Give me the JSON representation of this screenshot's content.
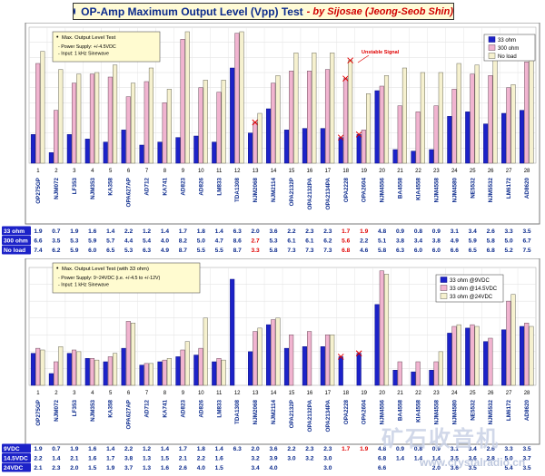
{
  "title": {
    "main": "OP-Amp Maximum Output Level (Vpp) Test",
    "byline": "- by Sijosae (Jeong-Seob Shin)"
  },
  "colors": {
    "blue": "#1c22c8",
    "pink": "#f1b4d0",
    "cream": "#f6f1cf",
    "red": "#e00000",
    "frame": "#7a7a7a",
    "noteBg": "#fffbd0"
  },
  "chart_data": [
    {
      "type": "bar",
      "title": "Max. Output Level Test",
      "notes": [
        "Power Supply: +/-4.5VDC",
        "Input: 1 kHz Sinewave"
      ],
      "numbers": [
        "1",
        "2",
        "3",
        "4",
        "5",
        "6",
        "7",
        "8",
        "9",
        "10",
        "11",
        "12",
        "13",
        "14",
        "15",
        "16",
        "17",
        "18",
        "19",
        "20",
        "21",
        "22",
        "23",
        "24",
        "25",
        "26",
        "27",
        "28"
      ],
      "categories": [
        "OP275GP",
        "NJM072",
        "LF353",
        "NJM353",
        "KA358",
        "OPA627AP",
        "AD712",
        "KA741",
        "AD823",
        "AD826",
        "LM833",
        "TDA1308",
        "NJM2068",
        "NJM2114",
        "OPA2132P",
        "OPA2132PA",
        "OPA2134PA",
        "OPA2228",
        "OPA2604",
        "NJM4556",
        "BA4558",
        "KIA4558",
        "NJM4558",
        "NJM4580",
        "NE5532",
        "NJM5532",
        "LM6172",
        "AD8620"
      ],
      "ylim": [
        0,
        9
      ],
      "unstable_label": "Unstable Signal",
      "series": [
        {
          "name": "33 ohm",
          "row_label": "33 ohm",
          "values": [
            1.9,
            0.7,
            1.9,
            1.6,
            1.4,
            2.2,
            1.2,
            1.4,
            1.7,
            1.8,
            1.4,
            6.3,
            2.0,
            3.6,
            2.2,
            2.3,
            2.3,
            1.7,
            1.9,
            4.8,
            0.9,
            0.8,
            0.9,
            3.1,
            3.4,
            2.6,
            3.3,
            3.5
          ]
        },
        {
          "name": "300 ohm",
          "row_label": "300 ohm",
          "values": [
            6.6,
            3.5,
            5.3,
            5.9,
            5.7,
            4.4,
            5.4,
            4.0,
            8.2,
            5.0,
            4.7,
            8.6,
            2.7,
            5.3,
            6.1,
            6.1,
            6.2,
            5.6,
            2.2,
            5.1,
            3.8,
            3.4,
            3.8,
            4.9,
            5.9,
            5.8,
            5.0,
            6.7
          ]
        },
        {
          "name": "No load",
          "row_label": "No load",
          "values": [
            7.4,
            6.2,
            5.9,
            6.0,
            6.5,
            5.3,
            6.3,
            4.9,
            8.7,
            5.5,
            5.5,
            8.7,
            3.3,
            5.8,
            7.3,
            7.3,
            7.3,
            6.8,
            4.6,
            5.8,
            6.3,
            6.0,
            6.0,
            6.6,
            6.5,
            6.8,
            5.2,
            7.5
          ]
        }
      ],
      "red_marks": {
        "33 ohm": [
          false,
          false,
          false,
          false,
          false,
          false,
          false,
          false,
          false,
          false,
          false,
          false,
          false,
          false,
          false,
          false,
          false,
          true,
          true,
          false,
          false,
          false,
          false,
          false,
          false,
          false,
          false,
          false
        ],
        "300 ohm": [
          false,
          false,
          false,
          false,
          false,
          false,
          false,
          false,
          false,
          false,
          false,
          false,
          true,
          false,
          false,
          false,
          false,
          true,
          false,
          false,
          false,
          false,
          false,
          false,
          false,
          false,
          false,
          false
        ],
        "No load": [
          false,
          false,
          false,
          false,
          false,
          false,
          false,
          false,
          false,
          false,
          false,
          false,
          true,
          false,
          false,
          false,
          false,
          true,
          false,
          false,
          false,
          false,
          false,
          false,
          false,
          false,
          false,
          false
        ]
      },
      "cross_marks": {
        "33 ohm": [
          false,
          false,
          false,
          false,
          false,
          false,
          false,
          false,
          false,
          false,
          false,
          false,
          false,
          false,
          false,
          false,
          false,
          true,
          true,
          false,
          false,
          false,
          false,
          false,
          false,
          false,
          false,
          false
        ],
        "300 ohm": [
          false,
          false,
          false,
          false,
          false,
          false,
          false,
          false,
          false,
          false,
          false,
          false,
          true,
          false,
          false,
          false,
          false,
          true,
          false,
          false,
          false,
          false,
          false,
          false,
          false,
          false,
          false,
          false
        ],
        "No load": [
          false,
          false,
          false,
          false,
          false,
          false,
          false,
          false,
          false,
          false,
          false,
          false,
          false,
          false,
          false,
          false,
          false,
          true,
          false,
          false,
          false,
          false,
          false,
          false,
          false,
          false,
          false,
          false
        ]
      }
    },
    {
      "type": "bar",
      "title": "Max. Output Level Test (with 33 ohm)",
      "notes": [
        "Power Supply: 9~24VDC (i.e. +/-4.5 to +/-12V)",
        "Input: 1 kHz Sinewave"
      ],
      "numbers": [
        "1",
        "2",
        "3",
        "4",
        "5",
        "6",
        "7",
        "8",
        "9",
        "10",
        "11",
        "12",
        "13",
        "14",
        "15",
        "16",
        "17",
        "18",
        "19",
        "20",
        "21",
        "22",
        "23",
        "24",
        "25",
        "26",
        "27",
        "28"
      ],
      "categories": [
        "OP275GP",
        "NJM072",
        "LF353",
        "NJM353",
        "KA358",
        "OPA627AP",
        "AD712",
        "KA741",
        "AD823",
        "AD826",
        "LM833",
        "TDA1308",
        "NJM2068",
        "NJM2114",
        "OPA2132P",
        "OPA2132PA",
        "OPA2134PA",
        "OPA2228",
        "OPA2604",
        "NJM4556",
        "BA4558",
        "KIA4558",
        "NJM4558",
        "NJM4580",
        "NE5532",
        "NJM5532",
        "LM6172",
        "AD8620"
      ],
      "ylim": [
        0,
        7
      ],
      "series": [
        {
          "name": "33 ohm @9VDC",
          "row_label": "9VDC",
          "values": [
            1.9,
            0.7,
            1.9,
            1.6,
            1.4,
            2.2,
            1.2,
            1.4,
            1.7,
            1.8,
            1.4,
            6.3,
            2.0,
            3.6,
            2.2,
            2.3,
            2.3,
            1.7,
            1.9,
            4.8,
            0.9,
            0.8,
            0.9,
            3.1,
            3.4,
            2.6,
            3.3,
            3.5
          ]
        },
        {
          "name": "33 ohm @14.5VDC",
          "row_label": "14.5VDC",
          "values": [
            2.2,
            1.4,
            2.1,
            1.6,
            1.7,
            3.8,
            1.3,
            1.5,
            2.1,
            2.2,
            1.6,
            null,
            3.2,
            3.9,
            3.0,
            3.2,
            3.0,
            null,
            null,
            6.8,
            1.4,
            1.4,
            1.4,
            3.5,
            3.6,
            2.8,
            5.0,
            3.7
          ]
        },
        {
          "name": "33 ohm @24VDC",
          "row_label": "24VDC",
          "values": [
            2.1,
            2.3,
            2.0,
            1.5,
            1.9,
            3.7,
            1.3,
            1.6,
            2.6,
            4.0,
            1.5,
            null,
            3.4,
            4.0,
            null,
            null,
            3.0,
            null,
            null,
            6.6,
            null,
            null,
            2.0,
            3.6,
            3.5,
            null,
            5.4,
            3.5
          ]
        }
      ],
      "red_marks": {
        "33 ohm @9VDC": [
          false,
          false,
          false,
          false,
          false,
          false,
          false,
          false,
          false,
          false,
          false,
          false,
          false,
          false,
          false,
          false,
          false,
          true,
          true,
          false,
          false,
          false,
          false,
          false,
          false,
          false,
          false,
          false
        ],
        "33 ohm @14.5VDC": [
          false,
          false,
          false,
          false,
          false,
          false,
          false,
          false,
          false,
          false,
          false,
          false,
          false,
          false,
          false,
          false,
          false,
          false,
          false,
          false,
          false,
          false,
          false,
          false,
          false,
          false,
          false,
          false
        ],
        "33 ohm @24VDC": [
          false,
          false,
          false,
          false,
          false,
          false,
          false,
          false,
          false,
          false,
          false,
          false,
          false,
          false,
          false,
          false,
          false,
          false,
          false,
          false,
          false,
          false,
          false,
          false,
          false,
          false,
          false,
          false
        ]
      },
      "cross_marks": {
        "33 ohm @9VDC": [
          false,
          false,
          false,
          false,
          false,
          false,
          false,
          false,
          false,
          false,
          false,
          false,
          false,
          false,
          false,
          false,
          false,
          true,
          true,
          false,
          false,
          false,
          false,
          false,
          false,
          false,
          false,
          false
        ],
        "33 ohm @14.5VDC": [
          false,
          false,
          false,
          false,
          false,
          false,
          false,
          false,
          false,
          false,
          false,
          false,
          false,
          false,
          false,
          false,
          false,
          false,
          false,
          false,
          false,
          false,
          false,
          false,
          false,
          false,
          false,
          false
        ],
        "33 ohm @24VDC": [
          false,
          false,
          false,
          false,
          false,
          false,
          false,
          false,
          false,
          false,
          false,
          false,
          false,
          false,
          false,
          false,
          false,
          false,
          false,
          false,
          false,
          false,
          false,
          false,
          false,
          false,
          false,
          false
        ]
      }
    }
  ],
  "watermark": {
    "chinese": "矿石收音机",
    "url": "www.crystalradio.cn"
  }
}
